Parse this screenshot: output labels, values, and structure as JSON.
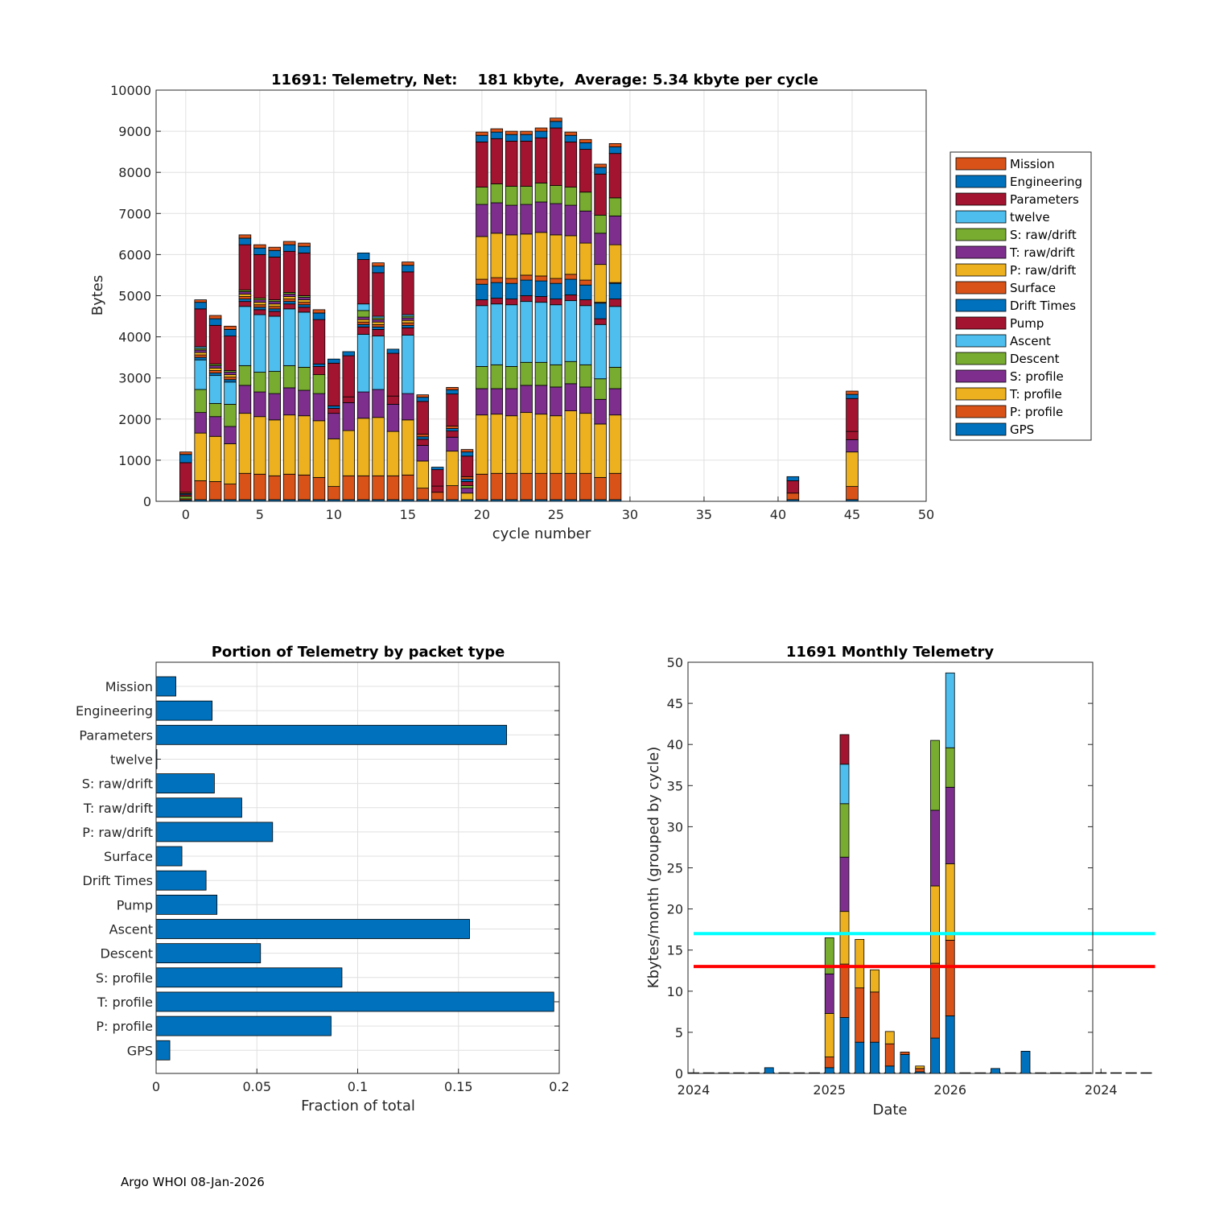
{
  "footer": "Argo WHOI 08-Jan-2026",
  "colors": {
    "Mission": "#D95319",
    "Engineering": "#0072BD",
    "Parameters": "#A2142F",
    "twelve": "#4DBEEE",
    "S: raw/drift": "#77AC30",
    "T: raw/drift": "#7E2F8E",
    "P: raw/drift": "#EDB120",
    "Surface": "#D95319",
    "Drift Times": "#0072BD",
    "Pump": "#A2142F",
    "Ascent": "#4DBEEE",
    "Descent": "#77AC30",
    "S: profile": "#7E2F8E",
    "T: profile": "#EDB120",
    "P: profile": "#D95319",
    "GPS": "#0072BD",
    "bar": "#0072BD",
    "line_cyan": "#00FFFF",
    "line_red": "#FF0000"
  },
  "chart_data": [
    {
      "type": "bar",
      "stacked": true,
      "title": "11691: Telemetry, Net:    181 kbyte,  Average: 5.34 kbyte per cycle",
      "xlabel": "cycle number",
      "ylabel": "Bytes",
      "xlim": [
        -2,
        50
      ],
      "ylim": [
        0,
        10000
      ],
      "xticks": [
        0,
        5,
        10,
        15,
        20,
        25,
        30,
        35,
        40,
        45,
        50
      ],
      "yticks": [
        0,
        1000,
        2000,
        3000,
        4000,
        5000,
        6000,
        7000,
        8000,
        9000,
        10000
      ],
      "legend_position": "right",
      "stack_order": [
        "GPS",
        "P: profile",
        "T: profile",
        "S: profile",
        "Descent",
        "Ascent",
        "Pump",
        "Drift Times",
        "Surface",
        "P: raw/drift",
        "T: raw/drift",
        "S: raw/drift",
        "twelve",
        "Parameters",
        "Engineering",
        "Mission"
      ],
      "legend": [
        "Mission",
        "Engineering",
        "Parameters",
        "twelve",
        "S: raw/drift",
        "T: raw/drift",
        "P: raw/drift",
        "Surface",
        "Drift Times",
        "Pump",
        "Ascent",
        "Descent",
        "S: profile",
        "T: profile",
        "P: profile",
        "GPS"
      ],
      "cycles": [
        {
          "x": 0,
          "v": [
            30,
            30,
            0,
            0,
            60,
            0,
            40,
            30,
            30,
            0,
            0,
            0,
            0,
            720,
            200,
            60
          ]
        },
        {
          "x": 1,
          "v": [
            40,
            460,
            1160,
            500,
            560,
            720,
            0,
            60,
            60,
            60,
            60,
            40,
            40,
            920,
            160,
            60
          ]
        },
        {
          "x": 2,
          "v": [
            40,
            440,
            1100,
            480,
            320,
            680,
            0,
            60,
            60,
            60,
            60,
            40,
            0,
            940,
            160,
            80
          ]
        },
        {
          "x": 3,
          "v": [
            40,
            380,
            980,
            420,
            540,
            540,
            0,
            60,
            60,
            60,
            60,
            40,
            0,
            840,
            160,
            80
          ]
        },
        {
          "x": 4,
          "v": [
            40,
            640,
            1460,
            680,
            480,
            1440,
            120,
            60,
            60,
            60,
            60,
            40,
            0,
            1100,
            160,
            80
          ]
        },
        {
          "x": 5,
          "v": [
            40,
            620,
            1400,
            600,
            480,
            1400,
            120,
            60,
            60,
            60,
            60,
            40,
            0,
            1060,
            160,
            80
          ]
        },
        {
          "x": 6,
          "v": [
            40,
            580,
            1360,
            640,
            540,
            1340,
            120,
            60,
            60,
            60,
            60,
            40,
            0,
            1040,
            160,
            80
          ]
        },
        {
          "x": 7,
          "v": [
            40,
            620,
            1440,
            660,
            540,
            1380,
            120,
            60,
            60,
            60,
            60,
            40,
            0,
            1000,
            160,
            80
          ]
        },
        {
          "x": 8,
          "v": [
            40,
            600,
            1440,
            620,
            560,
            1340,
            120,
            60,
            60,
            60,
            60,
            40,
            0,
            1040,
            160,
            80
          ]
        },
        {
          "x": 9,
          "v": [
            40,
            540,
            1380,
            660,
            460,
            0,
            200,
            60,
            0,
            0,
            0,
            0,
            0,
            1080,
            160,
            80
          ]
        },
        {
          "x": 10,
          "v": [
            40,
            320,
            1160,
            620,
            0,
            0,
            120,
            60,
            0,
            0,
            0,
            0,
            0,
            1040,
            100,
            0
          ]
        },
        {
          "x": 11,
          "v": [
            40,
            580,
            1100,
            680,
            0,
            0,
            140,
            0,
            0,
            0,
            0,
            0,
            0,
            1000,
            100,
            0
          ]
        },
        {
          "x": 12,
          "v": [
            40,
            580,
            1400,
            640,
            0,
            1400,
            180,
            60,
            60,
            60,
            60,
            160,
            160,
            1080,
            160,
            0
          ]
        },
        {
          "x": 13,
          "v": [
            40,
            580,
            1420,
            680,
            0,
            1300,
            160,
            60,
            60,
            60,
            60,
            40,
            40,
            1060,
            160,
            80
          ]
        },
        {
          "x": 14,
          "v": [
            40,
            580,
            1080,
            660,
            0,
            0,
            200,
            0,
            0,
            0,
            0,
            0,
            0,
            1040,
            100,
            0
          ]
        },
        {
          "x": 15,
          "v": [
            40,
            600,
            1340,
            640,
            0,
            1420,
            180,
            60,
            60,
            60,
            60,
            40,
            40,
            1040,
            160,
            80
          ]
        },
        {
          "x": 16,
          "v": [
            40,
            280,
            660,
            380,
            0,
            0,
            150,
            60,
            60,
            0,
            0,
            0,
            0,
            800,
            100,
            60
          ]
        },
        {
          "x": 17,
          "v": [
            40,
            180,
            0,
            0,
            0,
            0,
            150,
            0,
            0,
            0,
            0,
            0,
            0,
            400,
            60,
            0
          ]
        },
        {
          "x": 18,
          "v": [
            40,
            340,
            840,
            340,
            0,
            0,
            150,
            60,
            60,
            0,
            0,
            0,
            0,
            780,
            100,
            60
          ]
        },
        {
          "x": 19,
          "v": [
            40,
            0,
            160,
            120,
            60,
            0,
            100,
            60,
            60,
            0,
            0,
            0,
            0,
            500,
            100,
            60
          ]
        },
        {
          "x": 20,
          "v": [
            40,
            620,
            1440,
            640,
            540,
            1480,
            140,
            380,
            120,
            1040,
            780,
            420,
            0,
            1100,
            160,
            80
          ]
        },
        {
          "x": 21,
          "v": [
            40,
            640,
            1440,
            620,
            580,
            1480,
            140,
            380,
            120,
            1080,
            740,
            460,
            0,
            1100,
            160,
            80
          ]
        },
        {
          "x": 22,
          "v": [
            40,
            640,
            1400,
            660,
            540,
            1500,
            140,
            380,
            120,
            1060,
            720,
            460,
            0,
            1100,
            160,
            80
          ]
        },
        {
          "x": 23,
          "v": [
            40,
            640,
            1480,
            660,
            560,
            1480,
            140,
            380,
            120,
            1000,
            720,
            440,
            0,
            1100,
            160,
            80
          ]
        },
        {
          "x": 24,
          "v": [
            40,
            640,
            1440,
            700,
            560,
            1460,
            140,
            380,
            120,
            1060,
            740,
            460,
            0,
            1100,
            160,
            80
          ]
        },
        {
          "x": 25,
          "v": [
            40,
            640,
            1400,
            700,
            540,
            1460,
            140,
            380,
            120,
            1060,
            760,
            440,
            0,
            1400,
            160,
            80
          ]
        },
        {
          "x": 26,
          "v": [
            40,
            640,
            1520,
            660,
            540,
            1480,
            140,
            380,
            120,
            940,
            740,
            440,
            0,
            1100,
            160,
            80
          ]
        },
        {
          "x": 27,
          "v": [
            40,
            640,
            1460,
            640,
            540,
            1440,
            140,
            360,
            120,
            900,
            780,
            460,
            0,
            1040,
            160,
            80
          ]
        },
        {
          "x": 28,
          "v": [
            40,
            540,
            1300,
            600,
            500,
            1320,
            140,
            380,
            20,
            920,
            760,
            440,
            0,
            1000,
            160,
            80
          ]
        },
        {
          "x": 29,
          "v": [
            40,
            640,
            1420,
            640,
            520,
            1480,
            180,
            380,
            20,
            920,
            700,
            440,
            0,
            1080,
            160,
            80
          ]
        },
        {
          "x": 41,
          "v": [
            40,
            160,
            0,
            0,
            0,
            0,
            300,
            0,
            0,
            0,
            0,
            0,
            0,
            0,
            100,
            0
          ]
        },
        {
          "x": 45,
          "v": [
            40,
            320,
            840,
            300,
            0,
            0,
            200,
            0,
            0,
            0,
            0,
            0,
            0,
            800,
            100,
            80
          ]
        }
      ]
    },
    {
      "type": "barh",
      "title": "Portion of Telemetry by packet type",
      "xlabel": "Fraction of total",
      "xlim": [
        0,
        0.2
      ],
      "xticks": [
        0,
        0.05,
        0.1,
        0.15,
        0.2
      ],
      "xtick_labels": [
        "0",
        "0.05",
        "0.1",
        "0.15",
        "0.2"
      ],
      "categories": [
        "Mission",
        "Engineering",
        "Parameters",
        "twelve",
        "S: raw/drift",
        "T: raw/drift",
        "P: raw/drift",
        "Surface",
        "Drift Times",
        "Pump",
        "Ascent",
        "Descent",
        "S: profile",
        "T: profile",
        "P: profile",
        "GPS"
      ],
      "values": [
        0.0098,
        0.0278,
        0.1739,
        0.0004,
        0.0289,
        0.0425,
        0.0578,
        0.0128,
        0.0248,
        0.0302,
        0.1555,
        0.0518,
        0.0922,
        0.1973,
        0.0868,
        0.0068
      ]
    },
    {
      "type": "bar",
      "stacked": true,
      "title": "11691 Monthly Telemetry",
      "xlabel": "Date",
      "ylabel": "Kbytes/month (grouped by cycle)",
      "ylim": [
        0,
        50
      ],
      "yticks": [
        0,
        5,
        10,
        15,
        20,
        25,
        30,
        35,
        40,
        45,
        50
      ],
      "xlim_months": [
        0,
        30
      ],
      "xticks": [
        0,
        9,
        17,
        27
      ],
      "xtick_labels": [
        "2024",
        "2025",
        "2026",
        "2024"
      ],
      "hlines": [
        {
          "y": 17,
          "color": "#00FFFF"
        },
        {
          "y": 13,
          "color": "#FF0000"
        }
      ],
      "months": [
        {
          "m": 5,
          "s": [
            {
              "v": 0.7,
              "c": "#0072BD"
            }
          ]
        },
        {
          "m": 9,
          "s": [
            {
              "v": 0.7,
              "c": "#0072BD"
            },
            {
              "v": 1.3,
              "c": "#D95319"
            },
            {
              "v": 5.3,
              "c": "#EDB120"
            },
            {
              "v": 4.8,
              "c": "#7E2F8E"
            },
            {
              "v": 4.4,
              "c": "#77AC30"
            }
          ]
        },
        {
          "m": 10,
          "s": [
            {
              "v": 6.8,
              "c": "#0072BD"
            },
            {
              "v": 6.5,
              "c": "#D95319"
            },
            {
              "v": 6.4,
              "c": "#EDB120"
            },
            {
              "v": 6.6,
              "c": "#7E2F8E"
            },
            {
              "v": 6.5,
              "c": "#77AC30"
            },
            {
              "v": 4.8,
              "c": "#4DBEEE"
            },
            {
              "v": 3.6,
              "c": "#A2142F"
            }
          ]
        },
        {
          "m": 11,
          "s": [
            {
              "v": 3.8,
              "c": "#0072BD"
            },
            {
              "v": 6.6,
              "c": "#D95319"
            },
            {
              "v": 5.9,
              "c": "#EDB120"
            }
          ]
        },
        {
          "m": 12,
          "s": [
            {
              "v": 3.8,
              "c": "#0072BD"
            },
            {
              "v": 6.1,
              "c": "#D95319"
            },
            {
              "v": 2.7,
              "c": "#EDB120"
            }
          ]
        },
        {
          "m": 13,
          "s": [
            {
              "v": 0.9,
              "c": "#0072BD"
            },
            {
              "v": 2.7,
              "c": "#D95319"
            },
            {
              "v": 1.5,
              "c": "#EDB120"
            }
          ]
        },
        {
          "m": 14,
          "s": [
            {
              "v": 2.3,
              "c": "#0072BD"
            },
            {
              "v": 0.3,
              "c": "#D95319"
            }
          ]
        },
        {
          "m": 15,
          "s": [
            {
              "v": 0.2,
              "c": "#0072BD"
            },
            {
              "v": 0.4,
              "c": "#D95319"
            },
            {
              "v": 0.3,
              "c": "#EDB120"
            }
          ]
        },
        {
          "m": 16,
          "s": [
            {
              "v": 4.3,
              "c": "#0072BD"
            },
            {
              "v": 9.1,
              "c": "#D95319"
            },
            {
              "v": 9.4,
              "c": "#EDB120"
            },
            {
              "v": 9.2,
              "c": "#7E2F8E"
            },
            {
              "v": 8.5,
              "c": "#77AC30"
            }
          ]
        },
        {
          "m": 17,
          "s": [
            {
              "v": 7.0,
              "c": "#0072BD"
            },
            {
              "v": 9.2,
              "c": "#D95319"
            },
            {
              "v": 9.3,
              "c": "#EDB120"
            },
            {
              "v": 9.3,
              "c": "#7E2F8E"
            },
            {
              "v": 4.8,
              "c": "#77AC30"
            },
            {
              "v": 9.1,
              "c": "#4DBEEE"
            }
          ]
        },
        {
          "m": 20,
          "s": [
            {
              "v": 0.6,
              "c": "#0072BD"
            }
          ]
        },
        {
          "m": 22,
          "s": [
            {
              "v": 2.7,
              "c": "#0072BD"
            }
          ]
        }
      ]
    }
  ]
}
